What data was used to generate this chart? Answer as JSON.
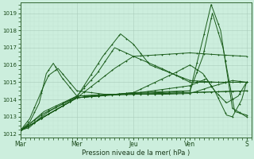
{
  "xlabel": "Pression niveau de la mer( hPa )",
  "bg_color": "#cceedd",
  "grid_color_major": "#aaccbb",
  "grid_color_minor": "#bbddcc",
  "line_color": "#1a5c1a",
  "ylim": [
    1011.8,
    1019.6
  ],
  "yticks": [
    1012,
    1013,
    1014,
    1015,
    1016,
    1017,
    1018,
    1019
  ],
  "day_labels": [
    "Mar",
    "Mer",
    "Jeu",
    "Ven",
    "S"
  ],
  "day_positions": [
    0,
    48,
    96,
    144,
    192
  ],
  "xmin": 0,
  "xmax": 196,
  "figw": 3.2,
  "figh": 2.0,
  "dpi": 100
}
